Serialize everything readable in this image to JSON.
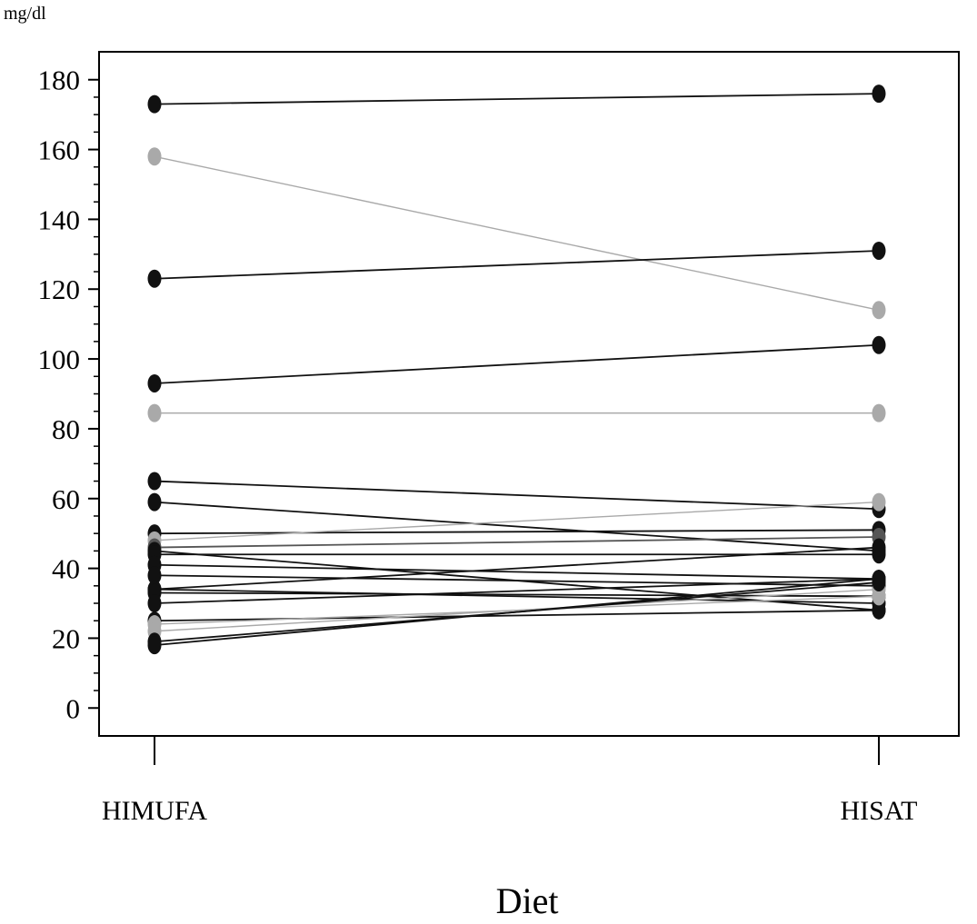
{
  "chart_data": {
    "type": "line",
    "unit_label": "mg/dl",
    "xlabel": "Diet",
    "ylabel": "",
    "categories": [
      "HIMUFA",
      "HISAT"
    ],
    "ylim": [
      -8,
      188
    ],
    "yticks": [
      0,
      20,
      40,
      60,
      80,
      100,
      120,
      140,
      160,
      180
    ],
    "grid": false,
    "legend": "none",
    "colors": {
      "dark": "#111111",
      "light": "#a9a9a9",
      "mid": "#555555"
    },
    "series": [
      {
        "values": [
          173,
          176
        ],
        "color": "dark"
      },
      {
        "values": [
          158,
          114
        ],
        "color": "light"
      },
      {
        "values": [
          123,
          131
        ],
        "color": "dark"
      },
      {
        "values": [
          93,
          104
        ],
        "color": "dark"
      },
      {
        "values": [
          84.5,
          84.5
        ],
        "color": "light"
      },
      {
        "values": [
          65,
          57
        ],
        "color": "dark"
      },
      {
        "values": [
          59,
          45
        ],
        "color": "dark"
      },
      {
        "values": [
          50,
          51
        ],
        "color": "dark"
      },
      {
        "values": [
          48,
          59
        ],
        "color": "light"
      },
      {
        "values": [
          46,
          49
        ],
        "color": "mid"
      },
      {
        "values": [
          45,
          28
        ],
        "color": "dark"
      },
      {
        "values": [
          44,
          44
        ],
        "color": "dark"
      },
      {
        "values": [
          41,
          37
        ],
        "color": "dark"
      },
      {
        "values": [
          38,
          35
        ],
        "color": "dark"
      },
      {
        "values": [
          34,
          46
        ],
        "color": "dark"
      },
      {
        "values": [
          34,
          30
        ],
        "color": "dark"
      },
      {
        "values": [
          33,
          32
        ],
        "color": "dark"
      },
      {
        "values": [
          30,
          37
        ],
        "color": "dark"
      },
      {
        "values": [
          25,
          28
        ],
        "color": "dark"
      },
      {
        "values": [
          24,
          32
        ],
        "color": "light"
      },
      {
        "values": [
          22,
          34
        ],
        "color": "light"
      },
      {
        "values": [
          19,
          36
        ],
        "color": "dark"
      },
      {
        "values": [
          18,
          37
        ],
        "color": "dark"
      }
    ]
  }
}
